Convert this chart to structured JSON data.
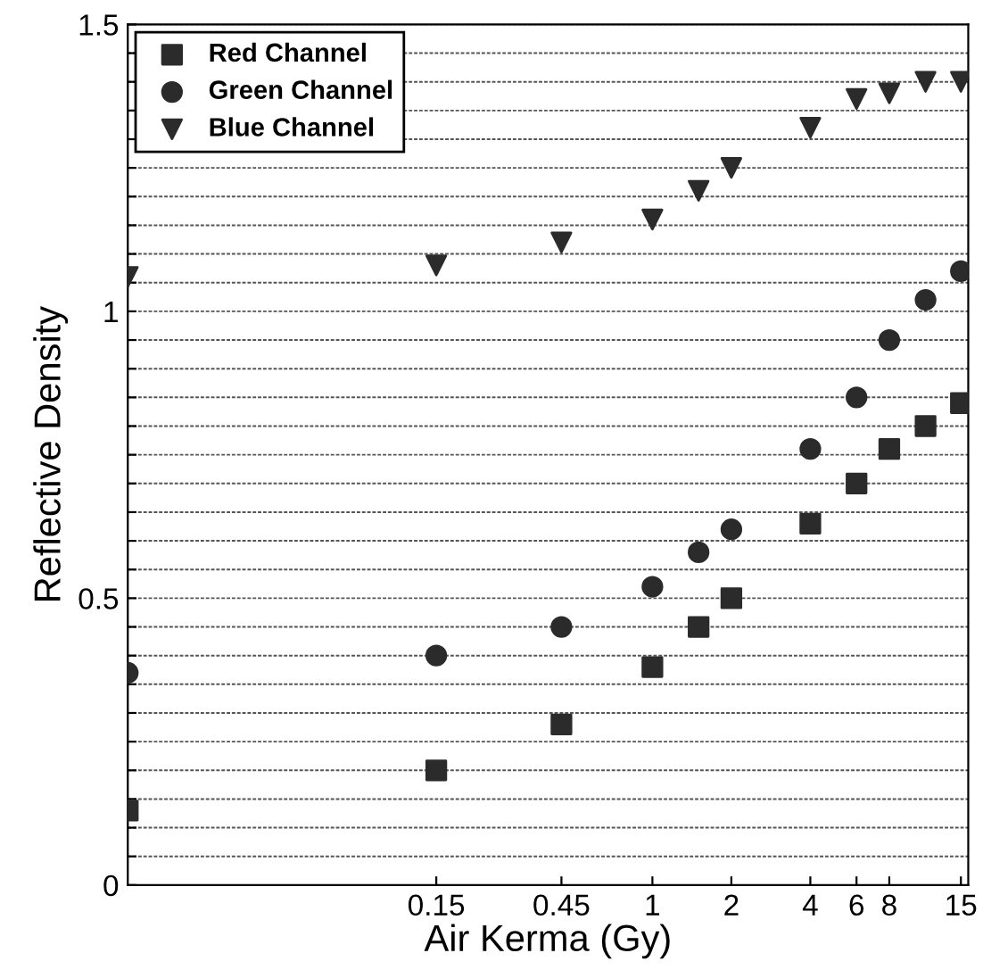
{
  "chart_data": {
    "type": "scatter",
    "xlabel": "Air Kerma (Gy)",
    "ylabel": "Reflective Density",
    "log": "x",
    "x": [
      0.01,
      0.15,
      0.45,
      1,
      1.5,
      2,
      4,
      6,
      8,
      11,
      15
    ],
    "xlim": [
      0.01,
      16
    ],
    "xticks": [
      0.15,
      0.45,
      1,
      2,
      4,
      6,
      8,
      15
    ],
    "ylim": [
      0,
      1.5
    ],
    "yticks": [
      0,
      {
        "value": 0.05,
        "label": null
      },
      {
        "value": 0.1,
        "label": null
      },
      {
        "value": 0.15,
        "label": null
      },
      {
        "value": 0.2,
        "label": null
      },
      {
        "value": 0.25,
        "label": null
      },
      {
        "value": 0.3,
        "label": null
      },
      {
        "value": 0.35,
        "label": null
      },
      {
        "value": 0.4,
        "label": null
      },
      {
        "value": 0.45,
        "label": null
      },
      0.5,
      {
        "value": 0.55,
        "label": null
      },
      {
        "value": 0.6,
        "label": null
      },
      {
        "value": 0.65,
        "label": null
      },
      {
        "value": 0.7,
        "label": null
      },
      {
        "value": 0.75,
        "label": null
      },
      {
        "value": 0.8,
        "label": null
      },
      {
        "value": 0.85,
        "label": null
      },
      {
        "value": 0.9,
        "label": null
      },
      {
        "value": 0.95,
        "label": null
      },
      1,
      {
        "value": 1.05,
        "label": null
      },
      {
        "value": 1.1,
        "label": null
      },
      {
        "value": 1.15,
        "label": null
      },
      {
        "value": 1.2,
        "label": null
      },
      {
        "value": 1.25,
        "label": null
      },
      {
        "value": 1.3,
        "label": null
      },
      {
        "value": 1.35,
        "label": null
      },
      {
        "value": 1.4,
        "label": null
      },
      {
        "value": 1.45,
        "label": null
      },
      1.5
    ],
    "grid": "y",
    "legend": "top left",
    "series": [
      {
        "name": "Red Channel",
        "color": "#2b2b2b",
        "marker": "square",
        "values": [
          0.13,
          0.2,
          0.28,
          0.38,
          0.45,
          0.5,
          0.63,
          0.7,
          0.76,
          0.8,
          0.84
        ]
      },
      {
        "name": "Green Channel",
        "color": "#2b2b2b",
        "marker": "circle",
        "values": [
          0.37,
          0.4,
          0.45,
          0.52,
          0.58,
          0.62,
          0.76,
          0.85,
          0.95,
          1.02,
          1.07
        ]
      },
      {
        "name": "Blue Channel",
        "color": "#2b2b2b",
        "marker": "triangle",
        "values": [
          1.06,
          1.08,
          1.12,
          1.16,
          1.21,
          1.25,
          1.32,
          1.37,
          1.38,
          1.4,
          1.4
        ]
      }
    ]
  }
}
